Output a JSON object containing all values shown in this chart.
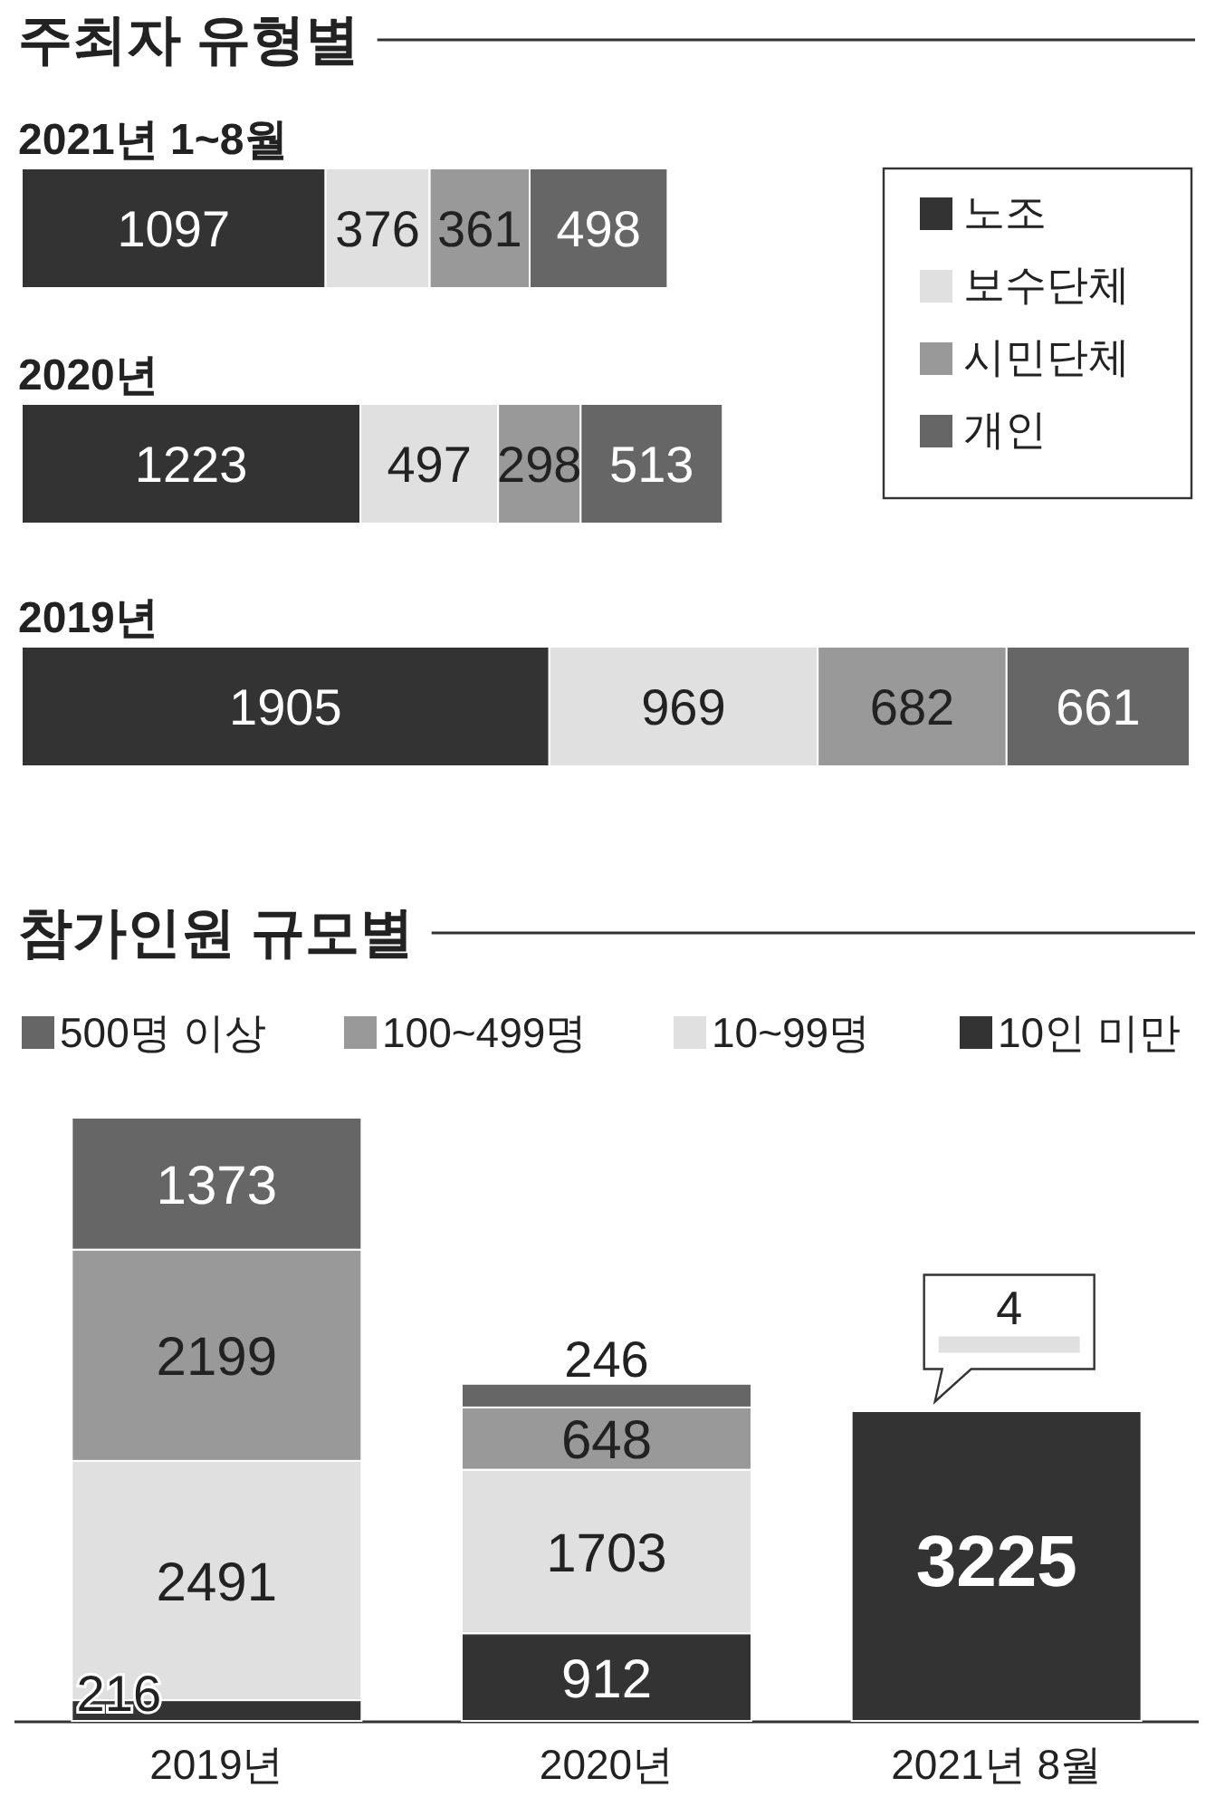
{
  "chart_data": [
    {
      "type": "bar",
      "title": "주최자 유형별",
      "orientation": "horizontal",
      "stacked": true,
      "data_labels": true,
      "legend": "right",
      "categories": [
        "2021년 1~8월",
        "2020년",
        "2019년"
      ],
      "series": [
        {
          "name": "노조",
          "color": "#333333",
          "values": [
            1097,
            1223,
            1905
          ]
        },
        {
          "name": "보수단체",
          "color": "#e0e0e0",
          "values": [
            376,
            497,
            969
          ]
        },
        {
          "name": "시민단체",
          "color": "#999999",
          "values": [
            361,
            298,
            682
          ]
        },
        {
          "name": "개인",
          "color": "#666666",
          "values": [
            498,
            513,
            661
          ]
        }
      ]
    },
    {
      "type": "bar",
      "title": "참가인원 규모별",
      "stacked": true,
      "data_labels": true,
      "legend": "top",
      "categories": [
        "2019년",
        "2020년",
        "2021년 8월"
      ],
      "series": [
        {
          "name": "10인 미만",
          "color": "#333333",
          "values": [
            216,
            912,
            3225
          ]
        },
        {
          "name": "10~99명",
          "color": "#e0e0e0",
          "values": [
            2491,
            1703,
            4
          ]
        },
        {
          "name": "100~499명",
          "color": "#999999",
          "values": [
            2199,
            648,
            null
          ]
        },
        {
          "name": "500명 이상",
          "color": "#666666",
          "values": [
            1373,
            246,
            null
          ]
        }
      ]
    }
  ]
}
